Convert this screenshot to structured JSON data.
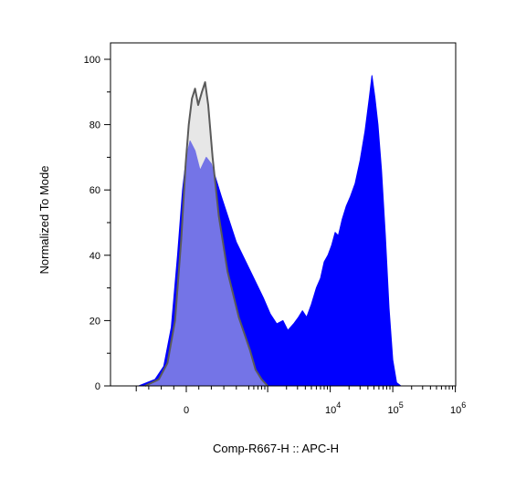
{
  "chart_data": {
    "type": "area",
    "title": "",
    "xlabel": "Comp-R667-H :: APC-H",
    "ylabel": "Normalized To Mode",
    "x_scale": "biexponential",
    "ylim": [
      0,
      100
    ],
    "y_ticks": [
      0,
      20,
      40,
      60,
      80,
      100
    ],
    "x_ticks": [
      {
        "value": 0,
        "base": "0",
        "exp": ""
      },
      {
        "value": 10000,
        "base": "10",
        "exp": "4"
      },
      {
        "value": 100000,
        "base": "10",
        "exp": "5"
      },
      {
        "value": 1000000,
        "base": "10",
        "exp": "6"
      }
    ],
    "grid": false,
    "legend": "none",
    "series": [
      {
        "color": "#0000ff",
        "fill": "#0000ff",
        "points": [
          [
            -380,
            0
          ],
          [
            -250,
            2
          ],
          [
            -180,
            6
          ],
          [
            -120,
            18
          ],
          [
            -70,
            40
          ],
          [
            -30,
            60
          ],
          [
            0,
            70
          ],
          [
            30,
            75
          ],
          [
            70,
            72
          ],
          [
            110,
            66
          ],
          [
            160,
            70
          ],
          [
            200,
            68
          ],
          [
            280,
            58
          ],
          [
            400,
            44
          ],
          [
            600,
            33
          ],
          [
            850,
            27
          ],
          [
            1100,
            22
          ],
          [
            1400,
            19
          ],
          [
            1750,
            20
          ],
          [
            2100,
            17
          ],
          [
            2600,
            19
          ],
          [
            3100,
            21
          ],
          [
            3600,
            23
          ],
          [
            4200,
            21
          ],
          [
            5000,
            25
          ],
          [
            6000,
            30
          ],
          [
            7000,
            33
          ],
          [
            8000,
            38
          ],
          [
            9200,
            40
          ],
          [
            10500,
            43
          ],
          [
            12000,
            47
          ],
          [
            13500,
            46
          ],
          [
            15500,
            51
          ],
          [
            18000,
            55
          ],
          [
            21000,
            58
          ],
          [
            25000,
            62
          ],
          [
            30000,
            69
          ],
          [
            36000,
            78
          ],
          [
            42000,
            88
          ],
          [
            46500,
            95
          ],
          [
            52000,
            88
          ],
          [
            58000,
            80
          ],
          [
            66000,
            66
          ],
          [
            76000,
            46
          ],
          [
            87000,
            24
          ],
          [
            100000,
            8
          ],
          [
            115000,
            1
          ],
          [
            135000,
            0
          ]
        ]
      },
      {
        "color": "#5a5a5a",
        "fill": "#d3d3d3",
        "points": [
          [
            -330,
            0
          ],
          [
            -220,
            2
          ],
          [
            -150,
            7
          ],
          [
            -90,
            20
          ],
          [
            -40,
            45
          ],
          [
            -5,
            68
          ],
          [
            20,
            80
          ],
          [
            45,
            88
          ],
          [
            70,
            91
          ],
          [
            95,
            86
          ],
          [
            125,
            90
          ],
          [
            150,
            93
          ],
          [
            175,
            86
          ],
          [
            210,
            70
          ],
          [
            260,
            52
          ],
          [
            330,
            35
          ],
          [
            420,
            21
          ],
          [
            520,
            11
          ],
          [
            640,
            5
          ],
          [
            800,
            2
          ],
          [
            1000,
            0
          ]
        ]
      }
    ]
  }
}
